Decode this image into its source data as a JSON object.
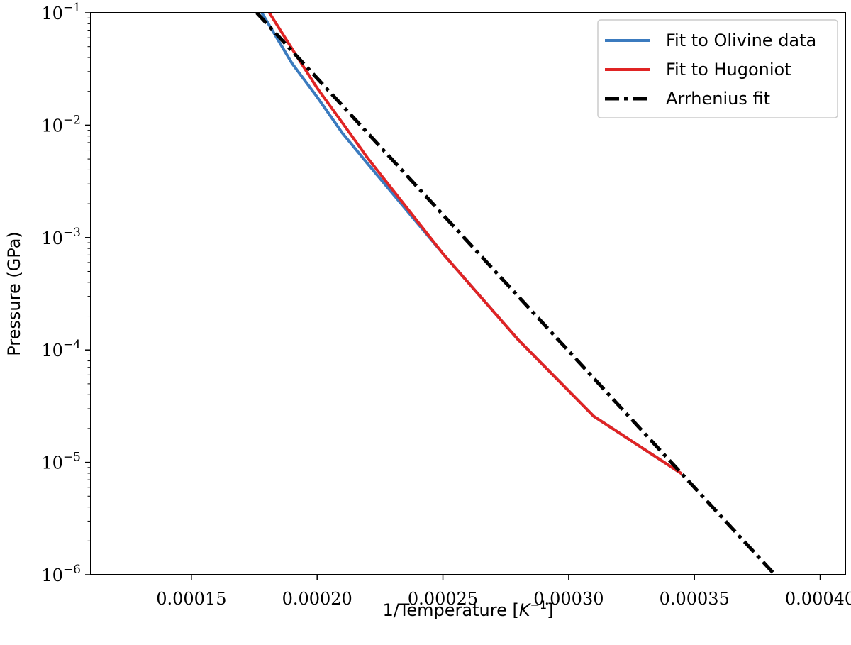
{
  "chart_data": {
    "type": "line",
    "title": "",
    "xlabel": "1/Temperature [",
    "xlabel_unit_base": "K",
    "xlabel_unit_exp": "−1",
    "xlabel_close": "]",
    "ylabel": "Pressure (GPa)",
    "xlim": [
      0.00011,
      0.00041
    ],
    "ylim_log10": [
      -6,
      -1
    ],
    "yscale": "log",
    "grid": false,
    "legend_placement": "upper right",
    "x_ticks": [
      0.00015,
      0.0002,
      0.00025,
      0.0003,
      0.00035,
      0.0004
    ],
    "x_tick_labels": [
      "0.00015",
      "0.00020",
      "0.00025",
      "0.00030",
      "0.00035",
      "0.00040"
    ],
    "y_ticks_log10": [
      -6,
      -5,
      -4,
      -3,
      -2,
      -1
    ],
    "y_tick_base": "10",
    "y_tick_exponents": [
      "−6",
      "−5",
      "−4",
      "−3",
      "−2",
      "−1"
    ],
    "series": [
      {
        "name": "Fit to Olivine data",
        "color": "#3b7bbf",
        "dash": "solid",
        "points": [
          [
            0.000178,
            0.1
          ],
          [
            0.00019,
            0.0355
          ],
          [
            0.0002,
            0.0178
          ],
          [
            0.00021,
            0.00851
          ],
          [
            0.00022,
            0.00457
          ],
          [
            0.00025,
            0.00072
          ],
          [
            0.00028,
            0.000123
          ],
          [
            0.00031,
            2.57e-05
          ],
          [
            0.000345,
            7.9e-06
          ]
        ]
      },
      {
        "name": "Fit to Hugoniot",
        "color": "#e02424",
        "dash": "solid",
        "points": [
          [
            0.000181,
            0.1
          ],
          [
            0.00019,
            0.0479
          ],
          [
            0.0002,
            0.0214
          ],
          [
            0.00021,
            0.0105
          ],
          [
            0.00022,
            0.00513
          ],
          [
            0.00025,
            0.00072
          ],
          [
            0.00028,
            0.000123
          ],
          [
            0.00031,
            2.57e-05
          ],
          [
            0.000345,
            7.9e-06
          ]
        ]
      },
      {
        "name": "Arrhenius fit",
        "color": "#000000",
        "dash": "dashdot",
        "points": [
          [
            0.000176,
            0.1
          ],
          [
            0.000382,
            1e-06
          ]
        ]
      }
    ]
  }
}
